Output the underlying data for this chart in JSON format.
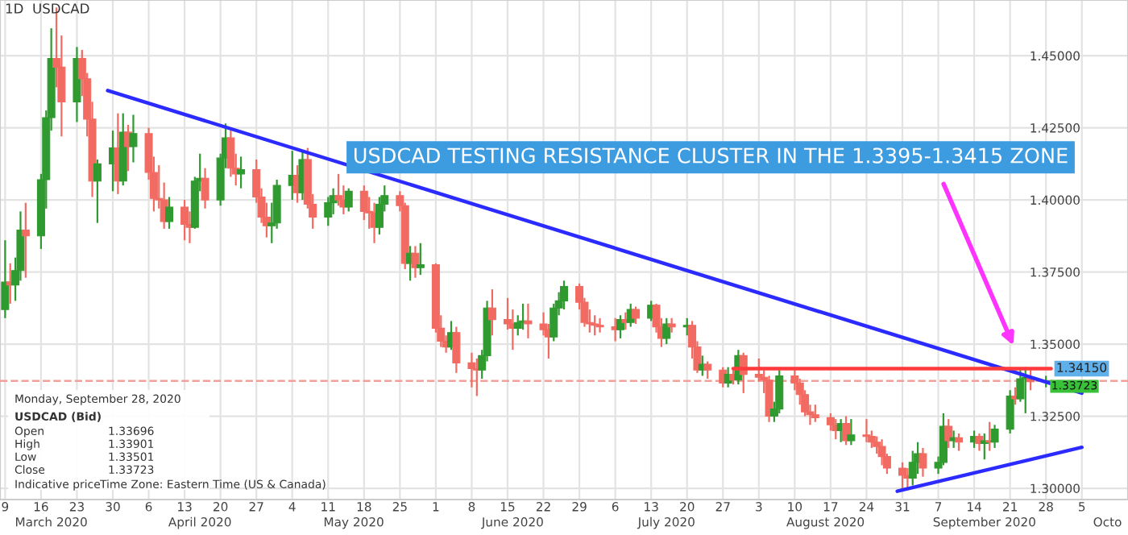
{
  "chart_data": {
    "type": "candlestick",
    "x": [
      "2020-03-09",
      "2020-03-10",
      "2020-03-11",
      "2020-03-12",
      "2020-03-13",
      "2020-03-16",
      "2020-03-17",
      "2020-03-18",
      "2020-03-19",
      "2020-03-20",
      "2020-03-23",
      "2020-03-24",
      "2020-03-25",
      "2020-03-26",
      "2020-03-27",
      "2020-03-30",
      "2020-03-31",
      "2020-04-01",
      "2020-04-02",
      "2020-04-03",
      "2020-04-06",
      "2020-04-07",
      "2020-04-08",
      "2020-04-09",
      "2020-04-10",
      "2020-04-13",
      "2020-04-14",
      "2020-04-15",
      "2020-04-16",
      "2020-04-17",
      "2020-04-20",
      "2020-04-21",
      "2020-04-22",
      "2020-04-23",
      "2020-04-24",
      "2020-04-27",
      "2020-04-28",
      "2020-04-29",
      "2020-04-30",
      "2020-05-01",
      "2020-05-04",
      "2020-05-05",
      "2020-05-06",
      "2020-05-07",
      "2020-05-08",
      "2020-05-11",
      "2020-05-12",
      "2020-05-13",
      "2020-05-14",
      "2020-05-15",
      "2020-05-18",
      "2020-05-19",
      "2020-05-20",
      "2020-05-21",
      "2020-05-22",
      "2020-05-25",
      "2020-05-26",
      "2020-05-27",
      "2020-05-28",
      "2020-05-29",
      "2020-06-01",
      "2020-06-02",
      "2020-06-03",
      "2020-06-04",
      "2020-06-05",
      "2020-06-08",
      "2020-06-09",
      "2020-06-10",
      "2020-06-11",
      "2020-06-12",
      "2020-06-15",
      "2020-06-16",
      "2020-06-17",
      "2020-06-18",
      "2020-06-19",
      "2020-06-22",
      "2020-06-23",
      "2020-06-24",
      "2020-06-25",
      "2020-06-26",
      "2020-06-29",
      "2020-06-30",
      "2020-07-01",
      "2020-07-02",
      "2020-07-03",
      "2020-07-06",
      "2020-07-07",
      "2020-07-08",
      "2020-07-09",
      "2020-07-10",
      "2020-07-13",
      "2020-07-14",
      "2020-07-15",
      "2020-07-16",
      "2020-07-17",
      "2020-07-20",
      "2020-07-21",
      "2020-07-22",
      "2020-07-23",
      "2020-07-24",
      "2020-07-27",
      "2020-07-28",
      "2020-07-29",
      "2020-07-30",
      "2020-07-31",
      "2020-08-03",
      "2020-08-04",
      "2020-08-05",
      "2020-08-06",
      "2020-08-07",
      "2020-08-10",
      "2020-08-11",
      "2020-08-12",
      "2020-08-13",
      "2020-08-14",
      "2020-08-17",
      "2020-08-18",
      "2020-08-19",
      "2020-08-20",
      "2020-08-21",
      "2020-08-24",
      "2020-08-25",
      "2020-08-26",
      "2020-08-27",
      "2020-08-28",
      "2020-08-31",
      "2020-09-01",
      "2020-09-02",
      "2020-09-03",
      "2020-09-04",
      "2020-09-07",
      "2020-09-08",
      "2020-09-09",
      "2020-09-10",
      "2020-09-11",
      "2020-09-14",
      "2020-09-15",
      "2020-09-16",
      "2020-09-17",
      "2020-09-18",
      "2020-09-21",
      "2020-09-22",
      "2020-09-23",
      "2020-09-24",
      "2020-09-25",
      "2020-09-28"
    ],
    "ohlc": [
      [
        1.362,
        1.386,
        1.359,
        1.3715
      ],
      [
        1.3715,
        1.378,
        1.364,
        1.3705
      ],
      [
        1.3705,
        1.38,
        1.365,
        1.3755
      ],
      [
        1.3755,
        1.396,
        1.372,
        1.3895
      ],
      [
        1.3895,
        1.399,
        1.373,
        1.3875
      ],
      [
        1.3875,
        1.409,
        1.383,
        1.407
      ],
      [
        1.407,
        1.431,
        1.397,
        1.4285
      ],
      [
        1.4285,
        1.4595,
        1.424,
        1.449
      ],
      [
        1.449,
        1.4667,
        1.439,
        1.446
      ],
      [
        1.446,
        1.457,
        1.422,
        1.434
      ],
      [
        1.434,
        1.453,
        1.427,
        1.449
      ],
      [
        1.449,
        1.452,
        1.436,
        1.442
      ],
      [
        1.442,
        1.444,
        1.422,
        1.428
      ],
      [
        1.428,
        1.434,
        1.401,
        1.4065
      ],
      [
        1.4065,
        1.414,
        1.392,
        1.4125
      ],
      [
        1.4125,
        1.424,
        1.403,
        1.418
      ],
      [
        1.418,
        1.43,
        1.402,
        1.4065
      ],
      [
        1.4065,
        1.43,
        1.405,
        1.4235
      ],
      [
        1.4235,
        1.426,
        1.41,
        1.4185
      ],
      [
        1.4185,
        1.4295,
        1.413,
        1.423
      ],
      [
        1.423,
        1.425,
        1.407,
        1.4095
      ],
      [
        1.4095,
        1.415,
        1.396,
        1.4005
      ],
      [
        1.4005,
        1.412,
        1.397,
        1.4
      ],
      [
        1.4,
        1.406,
        1.39,
        1.3925
      ],
      [
        1.3925,
        1.401,
        1.39,
        1.3975
      ],
      [
        1.3975,
        1.4,
        1.386,
        1.3915
      ],
      [
        1.3915,
        1.396,
        1.385,
        1.3905
      ],
      [
        1.3905,
        1.408,
        1.39,
        1.4065
      ],
      [
        1.4065,
        1.416,
        1.403,
        1.4075
      ],
      [
        1.4075,
        1.411,
        1.397,
        1.4
      ],
      [
        1.4,
        1.416,
        1.398,
        1.4145
      ],
      [
        1.4145,
        1.4265,
        1.411,
        1.4215
      ],
      [
        1.4215,
        1.424,
        1.408,
        1.411
      ],
      [
        1.411,
        1.416,
        1.405,
        1.409
      ],
      [
        1.409,
        1.415,
        1.404,
        1.4105
      ],
      [
        1.4105,
        1.414,
        1.399,
        1.401
      ],
      [
        1.401,
        1.404,
        1.392,
        1.394
      ],
      [
        1.394,
        1.399,
        1.387,
        1.391
      ],
      [
        1.391,
        1.399,
        1.385,
        1.392
      ],
      [
        1.392,
        1.407,
        1.39,
        1.405
      ],
      [
        1.405,
        1.417,
        1.4,
        1.4085
      ],
      [
        1.4085,
        1.412,
        1.399,
        1.4025
      ],
      [
        1.4025,
        1.417,
        1.4,
        1.414
      ],
      [
        1.414,
        1.418,
        1.397,
        1.3985
      ],
      [
        1.3985,
        1.402,
        1.39,
        1.394
      ],
      [
        1.394,
        1.401,
        1.391,
        1.399
      ],
      [
        1.399,
        1.404,
        1.395,
        1.4015
      ],
      [
        1.4015,
        1.409,
        1.398,
        1.4
      ],
      [
        1.4,
        1.405,
        1.395,
        1.3975
      ],
      [
        1.3975,
        1.404,
        1.396,
        1.403
      ],
      [
        1.403,
        1.405,
        1.393,
        1.396
      ],
      [
        1.396,
        1.401,
        1.39,
        1.3955
      ],
      [
        1.3955,
        1.399,
        1.385,
        1.3905
      ],
      [
        1.3905,
        1.401,
        1.388,
        1.3985
      ],
      [
        1.3985,
        1.405,
        1.396,
        1.4015
      ],
      [
        1.4015,
        1.403,
        1.396,
        1.398
      ],
      [
        1.398,
        1.399,
        1.376,
        1.378
      ],
      [
        1.378,
        1.384,
        1.372,
        1.3815
      ],
      [
        1.3815,
        1.384,
        1.373,
        1.3765
      ],
      [
        1.3765,
        1.385,
        1.374,
        1.3775
      ],
      [
        1.3775,
        1.378,
        1.354,
        1.3555
      ],
      [
        1.3555,
        1.36,
        1.349,
        1.351
      ],
      [
        1.351,
        1.353,
        1.347,
        1.349
      ],
      [
        1.349,
        1.358,
        1.348,
        1.354
      ],
      [
        1.354,
        1.356,
        1.34,
        1.3435
      ],
      [
        1.3435,
        1.347,
        1.335,
        1.3415
      ],
      [
        1.3415,
        1.345,
        1.332,
        1.341
      ],
      [
        1.341,
        1.348,
        1.338,
        1.346
      ],
      [
        1.346,
        1.365,
        1.344,
        1.3625
      ],
      [
        1.3625,
        1.369,
        1.353,
        1.3585
      ],
      [
        1.3585,
        1.366,
        1.355,
        1.357
      ],
      [
        1.357,
        1.362,
        1.348,
        1.3555
      ],
      [
        1.3555,
        1.36,
        1.353,
        1.3575
      ],
      [
        1.3575,
        1.364,
        1.355,
        1.358
      ],
      [
        1.358,
        1.364,
        1.352,
        1.357
      ],
      [
        1.357,
        1.361,
        1.353,
        1.355
      ],
      [
        1.355,
        1.357,
        1.345,
        1.3525
      ],
      [
        1.3525,
        1.364,
        1.351,
        1.3625
      ],
      [
        1.3625,
        1.368,
        1.36,
        1.365
      ],
      [
        1.365,
        1.372,
        1.362,
        1.37
      ],
      [
        1.37,
        1.371,
        1.362,
        1.3645
      ],
      [
        1.3645,
        1.366,
        1.356,
        1.3575
      ],
      [
        1.3575,
        1.362,
        1.354,
        1.357
      ],
      [
        1.357,
        1.36,
        1.353,
        1.3565
      ],
      [
        1.3565,
        1.359,
        1.354,
        1.356
      ],
      [
        1.356,
        1.359,
        1.351,
        1.355
      ],
      [
        1.355,
        1.36,
        1.352,
        1.3585
      ],
      [
        1.3585,
        1.361,
        1.355,
        1.3575
      ],
      [
        1.3575,
        1.364,
        1.356,
        1.362
      ],
      [
        1.362,
        1.363,
        1.357,
        1.359
      ],
      [
        1.359,
        1.365,
        1.358,
        1.3635
      ],
      [
        1.3635,
        1.364,
        1.354,
        1.356
      ],
      [
        1.356,
        1.359,
        1.349,
        1.352
      ],
      [
        1.352,
        1.359,
        1.35,
        1.357
      ],
      [
        1.357,
        1.359,
        1.354,
        1.356
      ],
      [
        1.356,
        1.359,
        1.353,
        1.3565
      ],
      [
        1.3565,
        1.358,
        1.345,
        1.349
      ],
      [
        1.349,
        1.351,
        1.34,
        1.341
      ],
      [
        1.341,
        1.346,
        1.339,
        1.343
      ],
      [
        1.343,
        1.344,
        1.338,
        1.341
      ],
      [
        1.341,
        1.342,
        1.335,
        1.3365
      ],
      [
        1.3365,
        1.342,
        1.335,
        1.3395
      ],
      [
        1.3395,
        1.341,
        1.336,
        1.3375
      ],
      [
        1.3375,
        1.348,
        1.336,
        1.346
      ],
      [
        1.346,
        1.347,
        1.333,
        1.3395
      ],
      [
        1.3395,
        1.345,
        1.337,
        1.3385
      ],
      [
        1.3385,
        1.341,
        1.333,
        1.3375
      ],
      [
        1.3375,
        1.339,
        1.323,
        1.325
      ],
      [
        1.325,
        1.33,
        1.323,
        1.3275
      ],
      [
        1.3275,
        1.341,
        1.326,
        1.339
      ],
      [
        1.339,
        1.341,
        1.334,
        1.3365
      ],
      [
        1.3365,
        1.338,
        1.329,
        1.3325
      ],
      [
        1.3325,
        1.334,
        1.325,
        1.3265
      ],
      [
        1.3265,
        1.329,
        1.322,
        1.3255
      ],
      [
        1.3255,
        1.329,
        1.323,
        1.3245
      ],
      [
        1.3245,
        1.326,
        1.32,
        1.322
      ],
      [
        1.322,
        1.324,
        1.317,
        1.32
      ],
      [
        1.32,
        1.324,
        1.316,
        1.3225
      ],
      [
        1.3225,
        1.325,
        1.315,
        1.3165
      ],
      [
        1.3165,
        1.324,
        1.315,
        1.3185
      ],
      [
        1.3185,
        1.324,
        1.316,
        1.318
      ],
      [
        1.318,
        1.32,
        1.314,
        1.316
      ],
      [
        1.316,
        1.318,
        1.312,
        1.3145
      ],
      [
        1.3145,
        1.317,
        1.308,
        1.311
      ],
      [
        1.311,
        1.312,
        1.305,
        1.307
      ],
      [
        1.307,
        1.309,
        1.2995,
        1.3045
      ],
      [
        1.3045,
        1.307,
        1.3,
        1.3035
      ],
      [
        1.3035,
        1.313,
        1.301,
        1.309
      ],
      [
        1.309,
        1.316,
        1.305,
        1.312
      ],
      [
        1.312,
        1.314,
        1.304,
        1.307
      ],
      [
        1.307,
        1.311,
        1.305,
        1.309
      ],
      [
        1.309,
        1.326,
        1.308,
        1.3215
      ],
      [
        1.3215,
        1.324,
        1.314,
        1.3165
      ],
      [
        1.3165,
        1.32,
        1.314,
        1.3175
      ],
      [
        1.3175,
        1.319,
        1.313,
        1.316
      ],
      [
        1.316,
        1.32,
        1.314,
        1.318
      ],
      [
        1.318,
        1.319,
        1.313,
        1.3155
      ],
      [
        1.3155,
        1.319,
        1.31,
        1.3165
      ],
      [
        1.3165,
        1.323,
        1.313,
        1.316
      ],
      [
        1.316,
        1.322,
        1.314,
        1.3205
      ],
      [
        1.3205,
        1.334,
        1.319,
        1.332
      ],
      [
        1.332,
        1.335,
        1.329,
        1.331
      ],
      [
        1.331,
        1.341,
        1.33,
        1.338
      ],
      [
        1.338,
        1.342,
        1.326,
        1.3385
      ],
      [
        1.3385,
        1.341,
        1.334,
        1.337
      ],
      [
        1.33696,
        1.33901,
        1.33501,
        1.33723
      ]
    ],
    "series": [
      {
        "type": "line",
        "color": "#2b2bff",
        "x": [
          "2020-03-29",
          "2020-10-05"
        ],
        "values": [
          1.4379,
          1.333
        ]
      },
      {
        "type": "line",
        "color": "#2b2bff",
        "x": [
          "2020-08-30",
          "2020-10-05"
        ],
        "values": [
          1.299,
          1.3142
        ]
      },
      {
        "type": "line",
        "color": "#ff3b3b",
        "x": [
          "2020-07-29",
          "2020-09-29"
        ],
        "values": [
          1.3415,
          1.3415
        ]
      }
    ],
    "xlim": [
      "2020-03-08",
      "2020-10-14"
    ],
    "xticks": [
      {
        "value": "2020-03-09",
        "label": "9"
      },
      {
        "value": "2020-03-16",
        "label": "16"
      },
      {
        "value": "2020-03-23",
        "label": "23"
      },
      {
        "value": "2020-03-30",
        "label": "30"
      },
      {
        "value": "2020-04-06",
        "label": "6"
      },
      {
        "value": "2020-04-13",
        "label": "13"
      },
      {
        "value": "2020-04-20",
        "label": "20"
      },
      {
        "value": "2020-04-27",
        "label": "27"
      },
      {
        "value": "2020-05-04",
        "label": "4"
      },
      {
        "value": "2020-05-11",
        "label": "11"
      },
      {
        "value": "2020-05-18",
        "label": "18"
      },
      {
        "value": "2020-05-25",
        "label": "25"
      },
      {
        "value": "2020-06-01",
        "label": "1"
      },
      {
        "value": "2020-06-08",
        "label": "8"
      },
      {
        "value": "2020-06-15",
        "label": "15"
      },
      {
        "value": "2020-06-22",
        "label": "22"
      },
      {
        "value": "2020-06-29",
        "label": "29"
      },
      {
        "value": "2020-07-06",
        "label": "6"
      },
      {
        "value": "2020-07-13",
        "label": "13"
      },
      {
        "value": "2020-07-20",
        "label": "20"
      },
      {
        "value": "2020-07-27",
        "label": "27"
      },
      {
        "value": "2020-08-03",
        "label": "3"
      },
      {
        "value": "2020-08-10",
        "label": "10"
      },
      {
        "value": "2020-08-17",
        "label": "17"
      },
      {
        "value": "2020-08-24",
        "label": "24"
      },
      {
        "value": "2020-08-31",
        "label": "31"
      },
      {
        "value": "2020-09-07",
        "label": "7"
      },
      {
        "value": "2020-09-14",
        "label": "14"
      },
      {
        "value": "2020-09-21",
        "label": "21"
      },
      {
        "value": "2020-09-28",
        "label": "28"
      },
      {
        "value": "2020-10-05",
        "label": "5"
      }
    ],
    "x2ticks": [
      {
        "value": "2020-03-18",
        "label": "March 2020"
      },
      {
        "value": "2020-04-16",
        "label": "April 2020"
      },
      {
        "value": "2020-05-16",
        "label": "May 2020"
      },
      {
        "value": "2020-06-16",
        "label": "June 2020"
      },
      {
        "value": "2020-07-16",
        "label": "July 2020"
      },
      {
        "value": "2020-08-16",
        "label": "August 2020"
      },
      {
        "value": "2020-09-16",
        "label": "September 2020"
      },
      {
        "value": "2020-10-10",
        "label": "Octo"
      }
    ],
    "x2lim": [
      "2020-03-08",
      "2020-10-14"
    ],
    "ylim": [
      1.2961,
      1.4693
    ],
    "yticks": [
      {
        "value": 1.3,
        "label": "1.30000"
      },
      {
        "value": 1.325,
        "label": "1.32500"
      },
      {
        "value": 1.35,
        "label": "1.35000"
      },
      {
        "value": 1.375,
        "label": "1.37500"
      },
      {
        "value": 1.4,
        "label": "1.40000"
      },
      {
        "value": 1.425,
        "label": "1.42500"
      },
      {
        "value": 1.45,
        "label": "1.45000"
      }
    ],
    "grid": true,
    "ref_lines": [
      {
        "axis": "y",
        "value": 1.33723,
        "label": "1.33723",
        "color": "#f4a09a",
        "line_style": "dashed"
      }
    ],
    "annotations": [
      "1D",
      "USDCAD",
      "Monday, September 28, 2020",
      "USDCAD (Bid)",
      "Open",
      "1.33696",
      "High",
      "1.33901",
      "Low",
      "1.33501",
      "Close",
      "1.33723",
      "Indicative price",
      "Time Zone: Eastern Time (US & Canada)",
      "USDCAD TESTING RESISTANCE CLUSTER IN THE 1.3395-1.3415 ZONE",
      {
        "text": "1.34150",
        "x": "2020-09-30",
        "y": 1.3415
      }
    ]
  }
}
